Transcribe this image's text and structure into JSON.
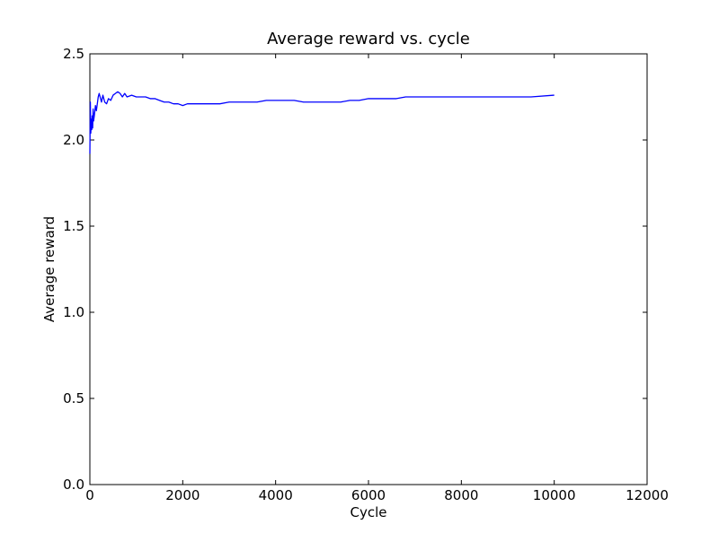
{
  "chart_data": {
    "type": "line",
    "title": "Average reward vs. cycle",
    "xlabel": "Cycle",
    "ylabel": "Average reward",
    "xlim": [
      0,
      12000
    ],
    "ylim": [
      0.0,
      2.5
    ],
    "xticks": [
      "0",
      "2000",
      "4000",
      "6000",
      "8000",
      "10000",
      "12000"
    ],
    "yticks": [
      "0.0",
      "0.5",
      "1.0",
      "1.5",
      "2.0",
      "2.5"
    ],
    "grid": false,
    "line_color": "#0000ff",
    "series": [
      {
        "x": [
          0,
          10,
          20,
          30,
          40,
          50,
          60,
          70,
          80,
          100,
          120,
          140,
          160,
          180,
          200,
          220,
          250,
          280,
          320,
          360,
          400,
          450,
          500,
          550,
          600,
          650,
          700,
          750,
          800,
          900,
          1000,
          1100,
          1200,
          1300,
          1400,
          1500,
          1600,
          1700,
          1800,
          1900,
          2000,
          2100,
          2200,
          2300,
          2400,
          2500,
          2600,
          2700,
          2800,
          3000,
          3200,
          3400,
          3600,
          3800,
          4000,
          4200,
          4400,
          4600,
          4800,
          5000,
          5200,
          5400,
          5600,
          5800,
          6000,
          6200,
          6400,
          6600,
          6800,
          7000,
          7500,
          8000,
          8500,
          9000,
          9500,
          10000
        ],
        "y": [
          1.92,
          2.22,
          2.04,
          2.12,
          2.06,
          2.14,
          2.07,
          2.18,
          2.11,
          2.15,
          2.2,
          2.17,
          2.21,
          2.25,
          2.27,
          2.25,
          2.22,
          2.26,
          2.22,
          2.21,
          2.24,
          2.23,
          2.26,
          2.27,
          2.28,
          2.27,
          2.25,
          2.27,
          2.25,
          2.26,
          2.25,
          2.25,
          2.25,
          2.24,
          2.24,
          2.23,
          2.22,
          2.22,
          2.21,
          2.21,
          2.2,
          2.21,
          2.21,
          2.21,
          2.21,
          2.21,
          2.21,
          2.21,
          2.21,
          2.22,
          2.22,
          2.22,
          2.22,
          2.23,
          2.23,
          2.23,
          2.23,
          2.22,
          2.22,
          2.22,
          2.22,
          2.22,
          2.23,
          2.23,
          2.24,
          2.24,
          2.24,
          2.24,
          2.25,
          2.25,
          2.25,
          2.25,
          2.25,
          2.25,
          2.25,
          2.26
        ]
      }
    ]
  }
}
